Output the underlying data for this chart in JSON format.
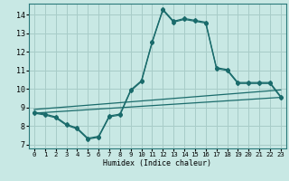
{
  "xlabel": "Humidex (Indice chaleur)",
  "background_color": "#c8e8e4",
  "grid_color": "#a8ccc8",
  "line_color": "#1a6b6b",
  "xlim": [
    -0.5,
    23.5
  ],
  "ylim": [
    6.8,
    14.6
  ],
  "xticks": [
    0,
    1,
    2,
    3,
    4,
    5,
    6,
    7,
    8,
    9,
    10,
    11,
    12,
    13,
    14,
    15,
    16,
    17,
    18,
    19,
    20,
    21,
    22,
    23
  ],
  "yticks": [
    7,
    8,
    9,
    10,
    11,
    12,
    13,
    14
  ],
  "curve1_x": [
    0,
    1,
    2,
    3,
    4,
    5,
    6,
    7,
    8,
    9,
    10,
    11,
    12,
    13,
    14,
    15,
    16,
    17,
    18,
    19,
    20,
    21,
    22,
    23
  ],
  "curve1_y": [
    8.7,
    8.6,
    8.45,
    8.05,
    7.85,
    7.3,
    7.4,
    8.5,
    8.6,
    9.9,
    10.4,
    12.5,
    14.25,
    13.6,
    13.75,
    13.65,
    13.55,
    11.1,
    11.0,
    10.3,
    10.3,
    10.3,
    10.3,
    9.55
  ],
  "curve2_x": [
    0,
    1,
    2,
    3,
    4,
    5,
    6,
    7,
    8,
    9,
    10,
    11,
    12,
    13,
    14,
    15,
    16,
    17,
    18,
    19,
    20,
    21,
    22,
    23
  ],
  "curve2_y": [
    8.75,
    8.65,
    8.5,
    8.1,
    7.9,
    7.35,
    7.45,
    8.55,
    8.65,
    9.95,
    10.45,
    12.55,
    14.3,
    13.65,
    13.8,
    13.7,
    13.6,
    11.15,
    11.05,
    10.35,
    10.35,
    10.35,
    10.35,
    9.6
  ],
  "line3_x": [
    0,
    23
  ],
  "line3_y": [
    8.7,
    9.55
  ],
  "line4_x": [
    0,
    23
  ],
  "line4_y": [
    8.9,
    9.95
  ]
}
